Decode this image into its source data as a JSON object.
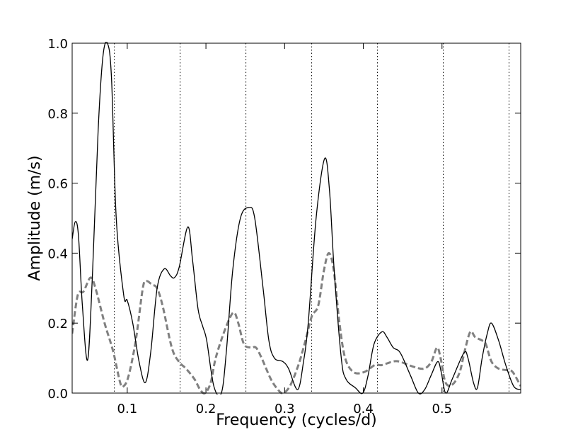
{
  "chart_data": {
    "type": "line",
    "xlabel": "Frequency (cycles/d)",
    "ylabel": "Amplitude (m/s)",
    "xlim": [
      0.03,
      0.6
    ],
    "ylim": [
      0,
      1
    ],
    "xticks": [
      0.1,
      0.2,
      0.3,
      0.4,
      0.5
    ],
    "yticks": [
      {
        "value": 0,
        "label": "0.0"
      },
      0.2,
      0.4,
      0.6,
      0.8,
      {
        "value": 1,
        "label": "1.0"
      }
    ],
    "vlines": [
      0.0836,
      0.1672,
      0.2508,
      0.3344,
      0.418,
      0.5016,
      0.5852
    ],
    "vline_color": "#000000",
    "series": [
      {
        "color": "#000000",
        "linestyle": "solid",
        "x": [
          0.03,
          0.034,
          0.038,
          0.043,
          0.0497,
          0.056,
          0.063,
          0.069,
          0.0748,
          0.08,
          0.086,
          0.0955,
          0.1,
          0.107,
          0.115,
          0.123,
          0.13,
          0.138,
          0.147,
          0.155,
          0.16,
          0.166,
          0.177,
          0.183,
          0.19,
          0.196,
          0.201,
          0.21,
          0.2196,
          0.226,
          0.234,
          0.2438,
          0.2546,
          0.262,
          0.2726,
          0.28,
          0.287,
          0.2978,
          0.305,
          0.3166,
          0.324,
          0.33,
          0.34,
          0.3508,
          0.357,
          0.363,
          0.372,
          0.378,
          0.39,
          0.3993,
          0.406,
          0.4136,
          0.4236,
          0.43,
          0.438,
          0.447,
          0.46,
          0.47,
          0.478,
          0.486,
          0.4946,
          0.499,
          0.5047,
          0.513,
          0.5279,
          0.533,
          0.54,
          0.545,
          0.551,
          0.5575,
          0.5629,
          0.572,
          0.581,
          0.591,
          0.6
        ],
        "values": [
          0.44,
          0.49,
          0.45,
          0.25,
          0.095,
          0.35,
          0.75,
          0.96,
          1.0,
          0.9,
          0.5,
          0.28,
          0.265,
          0.2,
          0.09,
          0.03,
          0.12,
          0.3,
          0.355,
          0.335,
          0.33,
          0.36,
          0.475,
          0.38,
          0.24,
          0.19,
          0.15,
          0.02,
          0.0,
          0.12,
          0.35,
          0.5,
          0.53,
          0.5,
          0.3,
          0.15,
          0.1,
          0.09,
          0.07,
          0.01,
          0.09,
          0.2,
          0.5,
          0.67,
          0.58,
          0.35,
          0.1,
          0.04,
          0.015,
          0.0,
          0.05,
          0.14,
          0.175,
          0.16,
          0.13,
          0.115,
          0.05,
          0.0,
          0.01,
          0.05,
          0.09,
          0.06,
          0.0,
          0.04,
          0.115,
          0.1,
          0.03,
          0.015,
          0.1,
          0.17,
          0.2,
          0.15,
          0.08,
          0.02,
          0.01
        ]
      },
      {
        "color": "#808080",
        "linestyle": "dashed",
        "x": [
          0.03,
          0.0371,
          0.0443,
          0.0533,
          0.0596,
          0.0712,
          0.082,
          0.091,
          0.0955,
          0.1018,
          0.1108,
          0.1198,
          0.1243,
          0.1315,
          0.1378,
          0.1449,
          0.1566,
          0.1656,
          0.1746,
          0.1854,
          0.1926,
          0.1989,
          0.2061,
          0.2124,
          0.224,
          0.2348,
          0.2411,
          0.2483,
          0.2573,
          0.2636,
          0.2708,
          0.2825,
          0.2915,
          0.2978,
          0.3067,
          0.3175,
          0.3265,
          0.3346,
          0.3427,
          0.3499,
          0.3562,
          0.3625,
          0.3697,
          0.3769,
          0.3876,
          0.4011,
          0.4146,
          0.4236,
          0.4371,
          0.4461,
          0.464,
          0.4775,
          0.4865,
          0.4937,
          0.4982,
          0.5045,
          0.5135,
          0.5225,
          0.5288,
          0.536,
          0.5422,
          0.5512,
          0.5557,
          0.5629,
          0.5719,
          0.5836,
          0.5899,
          0.6
        ],
        "values": [
          0.17,
          0.28,
          0.29,
          0.33,
          0.3,
          0.2,
          0.12,
          0.03,
          0.02,
          0.05,
          0.15,
          0.3,
          0.32,
          0.31,
          0.3,
          0.25,
          0.13,
          0.09,
          0.07,
          0.04,
          0.01,
          0.0,
          0.03,
          0.1,
          0.18,
          0.23,
          0.2,
          0.14,
          0.13,
          0.13,
          0.1,
          0.04,
          0.01,
          0.0,
          0.02,
          0.08,
          0.15,
          0.22,
          0.25,
          0.35,
          0.4,
          0.35,
          0.2,
          0.1,
          0.06,
          0.06,
          0.08,
          0.08,
          0.09,
          0.09,
          0.075,
          0.07,
          0.09,
          0.13,
          0.1,
          0.03,
          0.025,
          0.06,
          0.12,
          0.175,
          0.16,
          0.15,
          0.14,
          0.09,
          0.07,
          0.065,
          0.06,
          0.02
        ]
      }
    ]
  }
}
